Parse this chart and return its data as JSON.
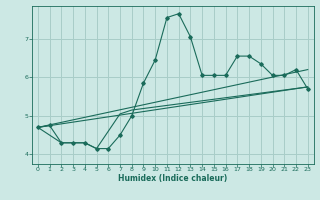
{
  "xlabel": "Humidex (Indice chaleur)",
  "bg_color": "#cce8e4",
  "grid_color": "#a8cdc8",
  "line_color": "#1a6b5a",
  "xlim": [
    -0.5,
    23.5
  ],
  "ylim": [
    3.75,
    7.85
  ],
  "xticks": [
    0,
    1,
    2,
    3,
    4,
    5,
    6,
    7,
    8,
    9,
    10,
    11,
    12,
    13,
    14,
    15,
    16,
    17,
    18,
    19,
    20,
    21,
    22,
    23
  ],
  "yticks": [
    4,
    5,
    6,
    7
  ],
  "lines": [
    {
      "x": [
        0,
        1,
        2,
        3,
        4,
        5,
        6,
        7,
        8,
        9,
        10,
        11,
        12,
        13,
        14,
        15,
        16,
        17,
        18,
        19,
        20,
        21,
        22,
        23
      ],
      "y": [
        4.7,
        4.75,
        4.3,
        4.3,
        4.3,
        4.15,
        4.15,
        4.5,
        5.0,
        5.85,
        6.45,
        7.55,
        7.65,
        7.05,
        6.05,
        6.05,
        6.05,
        6.55,
        6.55,
        6.35,
        6.05,
        6.05,
        6.2,
        5.7
      ],
      "marker": true
    },
    {
      "x": [
        0,
        2,
        3,
        4,
        5,
        6,
        7,
        8,
        23
      ],
      "y": [
        4.7,
        4.3,
        4.3,
        4.3,
        4.15,
        4.6,
        5.05,
        5.15,
        5.75
      ],
      "marker": false
    },
    {
      "x": [
        0,
        23
      ],
      "y": [
        4.7,
        5.75
      ],
      "marker": false
    },
    {
      "x": [
        0,
        23
      ],
      "y": [
        4.7,
        6.2
      ],
      "marker": false
    }
  ],
  "figsize": [
    3.2,
    2.0
  ],
  "dpi": 100
}
